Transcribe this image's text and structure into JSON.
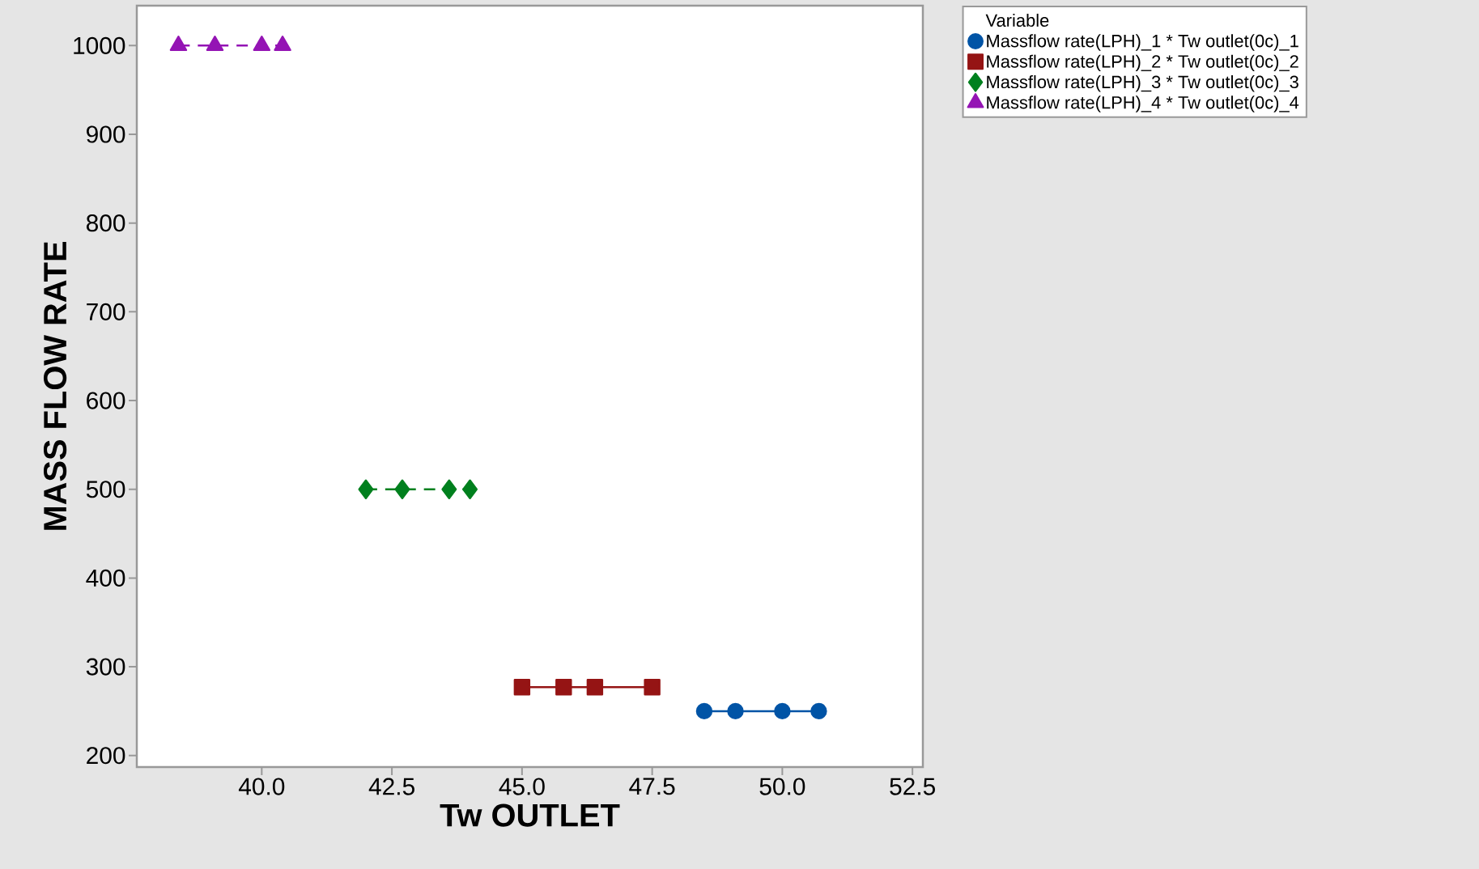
{
  "chart_data": {
    "type": "line",
    "xlabel": "Tw OUTLET",
    "ylabel": "MASS FLOW RATE",
    "legend_title": "Variable",
    "legend": "top right",
    "grid": false,
    "xlim": [
      37.6,
      52.7
    ],
    "ylim": [
      187,
      1045
    ],
    "xticks": [
      {
        "value": 40,
        "label": "40.0"
      },
      {
        "value": 42.5,
        "label": "42.5"
      },
      {
        "value": 45,
        "label": "45.0"
      },
      {
        "value": 47.5,
        "label": "47.5"
      },
      {
        "value": 50,
        "label": "50.0"
      },
      {
        "value": 52.5,
        "label": "52.5"
      }
    ],
    "yticks": [
      200,
      300,
      400,
      500,
      600,
      700,
      800,
      900,
      1000
    ],
    "series": [
      {
        "name": "Massflow rate(LPH)_1 * Tw outlet(0c)_1",
        "color": "#0054a6",
        "marker": "circle",
        "line_style": "solid",
        "x": [
          48.5,
          49.1,
          50.0,
          50.7
        ],
        "values": [
          250,
          250,
          250,
          250
        ]
      },
      {
        "name": "Massflow rate(LPH)_2 * Tw outlet(0c)_2",
        "color": "#951414",
        "marker": "square",
        "line_style": "solid",
        "x": [
          45.0,
          45.8,
          46.4,
          47.5
        ],
        "values": [
          277,
          277,
          277,
          277
        ]
      },
      {
        "name": "Massflow rate(LPH)_3 * Tw outlet(0c)_3",
        "color": "#00801e",
        "marker": "diamond",
        "line_style": "dashed",
        "x": [
          42.0,
          42.7,
          43.6,
          44.0
        ],
        "values": [
          500,
          500,
          500,
          500
        ]
      },
      {
        "name": "Massflow rate(LPH)_4 * Tw outlet(0c)_4",
        "color": "#9414b4",
        "marker": "triangle",
        "line_style": "dashed",
        "x": [
          38.4,
          39.1,
          40.0,
          40.4
        ],
        "values": [
          1000,
          1000,
          1000,
          1000
        ]
      }
    ]
  }
}
